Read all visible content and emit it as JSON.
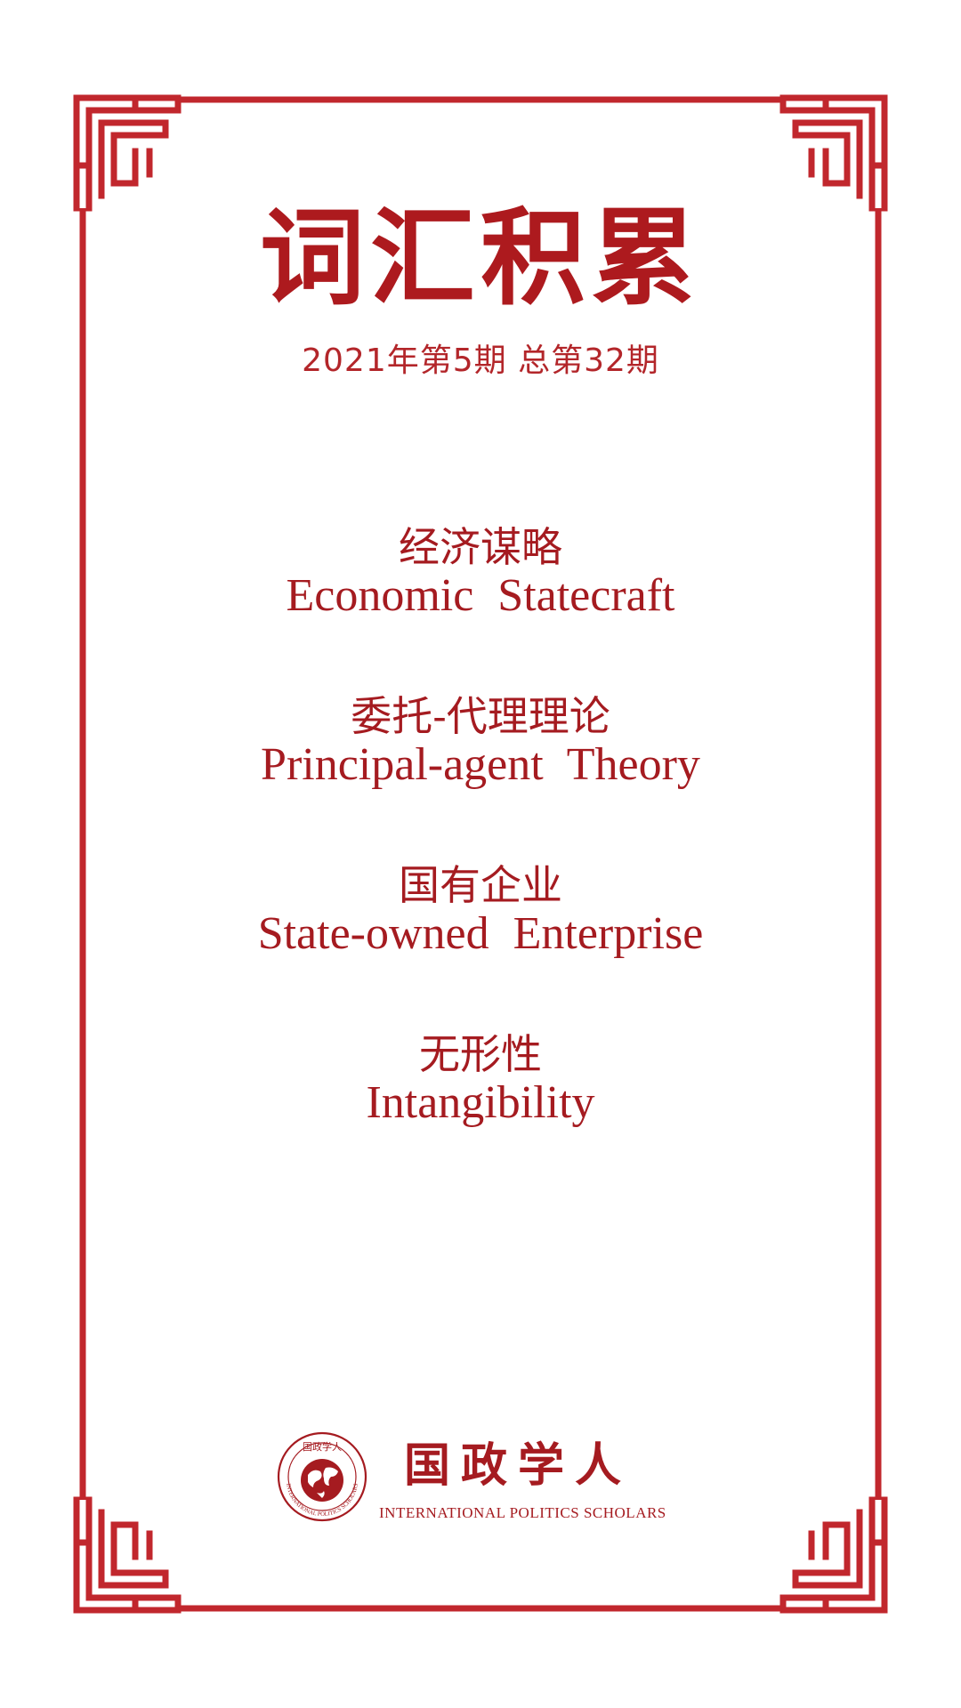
{
  "title": "词汇积累",
  "issue": "2021年第5期 总第32期",
  "terms": [
    {
      "zh": "经济谋略",
      "en": "Economic Statecraft"
    },
    {
      "zh": "委托-代理理论",
      "en": "Principal-agent Theory"
    },
    {
      "zh": "国有企业",
      "en": "State-owned Enterprise"
    },
    {
      "zh": "无形性",
      "en": "Intangibility"
    }
  ],
  "logo": {
    "name": "国政学人",
    "subtitle": "INTERNATIONAL POLITICS SCHOLARS",
    "emblem_top_text": "国政学人",
    "emblem_ring_text": "INTERNATIONAL POLITICS SCHOLARS",
    "emblem_icon": "globe-icon"
  },
  "colors": {
    "frame": "#c1272d",
    "title": "#ad1a1e",
    "text": "#a51b20"
  }
}
